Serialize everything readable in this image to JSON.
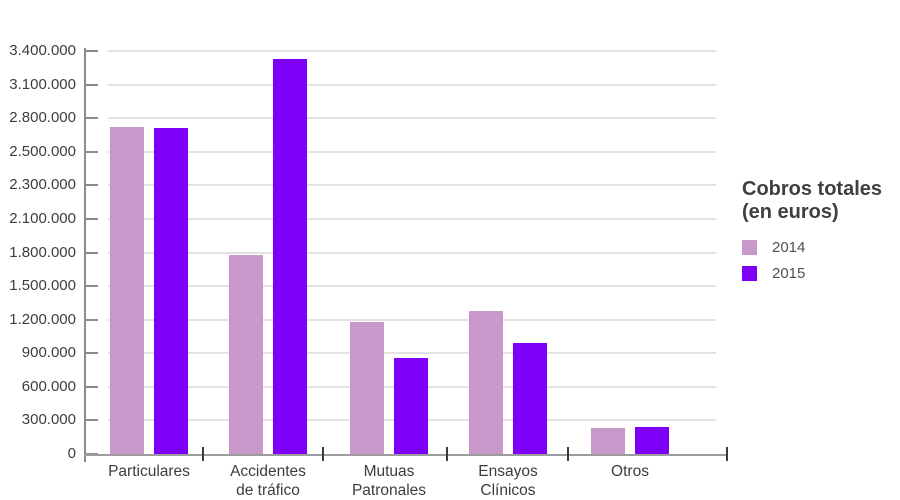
{
  "chart_data": {
    "type": "bar",
    "title": "Cobros totales (en euros)",
    "legend_title_lines": [
      "Cobros totales",
      "(en euros)"
    ],
    "legend_position": "right",
    "grid": true,
    "ylim": [
      0,
      3400000
    ],
    "y_tick_values": [
      0,
      300000,
      600000,
      900000,
      1200000,
      1500000,
      1800000,
      2100000,
      2300000,
      2500000,
      2800000,
      3100000,
      3400000
    ],
    "y_tick_labels": [
      "0",
      "300.000",
      "600.000",
      "900.000",
      "1.200.000",
      "1.500.000",
      "1.800.000",
      "2.100.000",
      "2.300.000",
      "2.500.000",
      "2.800.000",
      "3.100.000",
      "3.400.000"
    ],
    "categories": [
      {
        "id": "particulares",
        "lines": [
          "Particulares"
        ]
      },
      {
        "id": "accidentes-de-trafico",
        "lines": [
          "Accidentes",
          "de tráfico"
        ]
      },
      {
        "id": "mutuas-patronales",
        "lines": [
          "Mutuas",
          "Patronales"
        ]
      },
      {
        "id": "ensayos-clinicos",
        "lines": [
          "Ensayos",
          "Clínicos"
        ]
      },
      {
        "id": "otros",
        "lines": [
          "Otros"
        ]
      }
    ],
    "series": [
      {
        "name": "2014",
        "color": "#c998cb",
        "values": [
          2720000,
          1780000,
          1180000,
          1280000,
          230000
        ]
      },
      {
        "name": "2015",
        "color": "#7d00f9",
        "values": [
          2710000,
          3330000,
          860000,
          990000,
          240000
        ]
      }
    ],
    "colors": {
      "grid": "#e2e2e2",
      "y_axis": "#8c8c8c",
      "x_axis": "#9d9d9d",
      "x_tick": "#3c3c3c",
      "label_text": "#3d3d3d"
    }
  }
}
